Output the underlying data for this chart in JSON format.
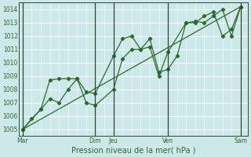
{
  "title": "",
  "xlabel": "Pression niveau de la mer( hPa )",
  "ylabel": "",
  "bg_color": "#cce8e8",
  "plot_bg_color": "#cce8e8",
  "grid_color": "#aacccc",
  "line_color": "#2d6a2d",
  "ylim": [
    1004.5,
    1014.5
  ],
  "yticks": [
    1005,
    1006,
    1007,
    1008,
    1009,
    1010,
    1011,
    1012,
    1013,
    1014
  ],
  "x_vlines": [
    0,
    4,
    5,
    8,
    12
  ],
  "series1": {
    "x": [
      0,
      0.5,
      1.0,
      1.5,
      2.0,
      2.5,
      3.0,
      3.5,
      4.0,
      5.0,
      5.5,
      6.0,
      6.5,
      7.0,
      7.5,
      8.0,
      8.5,
      9.0,
      9.5,
      10.0,
      10.5,
      11.0,
      11.5,
      12.0
    ],
    "y": [
      1005.0,
      1005.8,
      1006.5,
      1007.3,
      1007.0,
      1008.0,
      1008.8,
      1007.0,
      1006.8,
      1008.0,
      1010.3,
      1011.0,
      1011.0,
      1011.8,
      1009.3,
      1009.5,
      1010.5,
      1013.0,
      1013.1,
      1013.0,
      1013.5,
      1014.0,
      1012.0,
      1014.2
    ]
  },
  "series2": {
    "x": [
      0,
      1.0,
      1.5,
      2.0,
      2.5,
      3.0,
      3.5,
      4.0,
      5.0,
      5.5,
      6.0,
      6.5,
      7.0,
      7.5,
      8.0,
      9.0,
      9.5,
      10.0,
      10.5,
      11.0,
      11.5,
      12.0
    ],
    "y": [
      1005.0,
      1006.5,
      1008.7,
      1008.8,
      1008.8,
      1008.8,
      1007.8,
      1007.7,
      1010.5,
      1011.8,
      1012.0,
      1011.0,
      1011.2,
      1009.0,
      1010.8,
      1013.0,
      1013.0,
      1013.5,
      1013.8,
      1012.0,
      1012.5,
      1014.2
    ]
  },
  "trend_line": {
    "x": [
      0,
      12
    ],
    "y": [
      1005.0,
      1014.2
    ]
  },
  "xlim": [
    -0.2,
    12.4
  ],
  "xtick_pos": [
    0,
    4,
    5,
    8,
    12
  ],
  "xtick_lab": [
    "Mar",
    "Dim",
    "Jeu",
    "Ven",
    "Sam"
  ],
  "vline_color": "#446644",
  "font_color": "#336633"
}
